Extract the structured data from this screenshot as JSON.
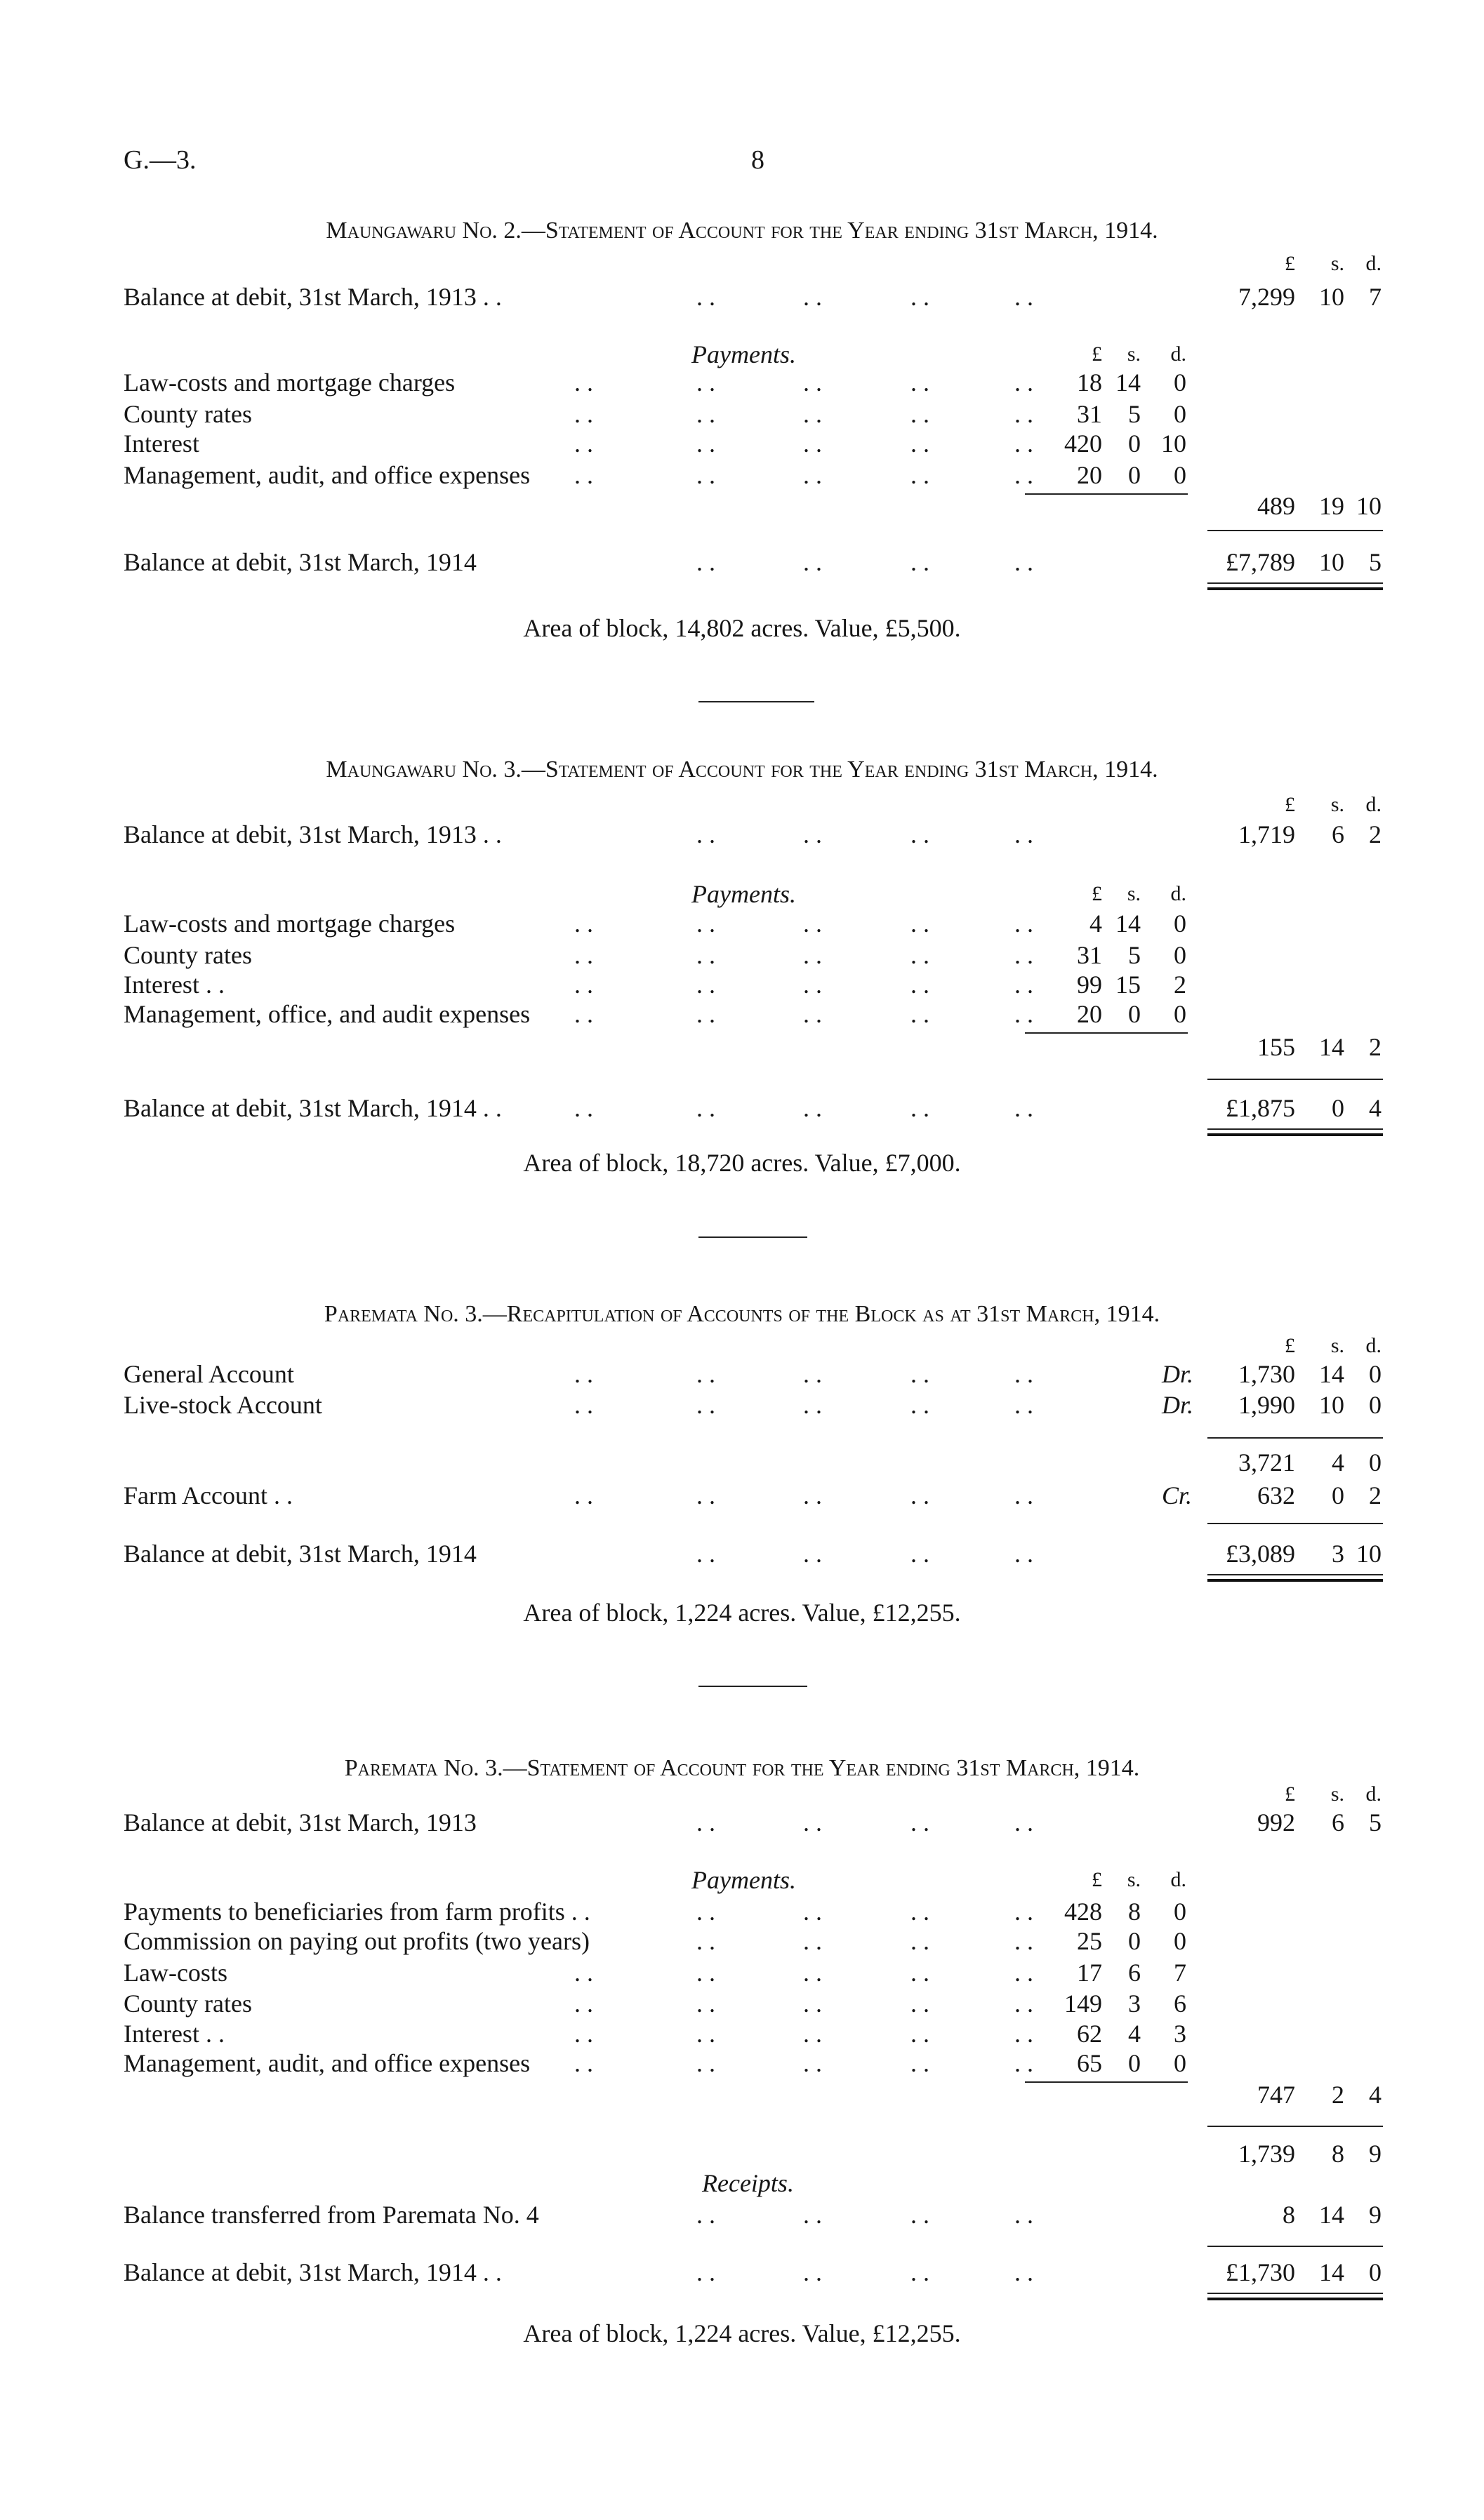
{
  "page": {
    "ref": "G.—3.",
    "number": "8",
    "leader": ". ."
  },
  "columns": {
    "pounds": "£",
    "shillings": "s.",
    "pence": "d."
  },
  "sections": [
    {
      "title": "Maungawaru No. 2.—Statement of Account for the Year ending 31st March, 1914.",
      "opening": {
        "label": "Balance at debit, 31st March, 1913 . .",
        "amount": [
          "7,299",
          "10",
          "7"
        ]
      },
      "payments_heading": "Payments.",
      "payments": [
        {
          "label": "Law-costs and mortgage charges",
          "amount": [
            "18",
            "14",
            "0"
          ]
        },
        {
          "label": "County rates",
          "amount": [
            "31",
            "5",
            "0"
          ]
        },
        {
          "label": "Interest",
          "amount": [
            "420",
            "0",
            "10"
          ]
        },
        {
          "label": "Management, audit, and office expenses",
          "amount": [
            "20",
            "0",
            "0"
          ]
        }
      ],
      "payments_total": [
        "489",
        "19",
        "10"
      ],
      "closing": {
        "label": "Balance at debit, 31st March, 1914",
        "amount": [
          "£7,789",
          "10",
          "5"
        ]
      },
      "footer": "Area of block, 14,802 acres.   Value, £5,500."
    },
    {
      "title": "Maungawaru No. 3.—Statement of Account for the Year ending 31st March, 1914.",
      "opening": {
        "label": "Balance at debit, 31st March, 1913 . .",
        "amount": [
          "1,719",
          "6",
          "2"
        ]
      },
      "payments_heading": "Payments.",
      "payments": [
        {
          "label": "Law-costs and mortgage charges",
          "amount": [
            "4",
            "14",
            "0"
          ]
        },
        {
          "label": "County rates",
          "amount": [
            "31",
            "5",
            "0"
          ]
        },
        {
          "label": "Interest . .",
          "amount": [
            "99",
            "15",
            "2"
          ]
        },
        {
          "label": "Management, office, and audit expenses",
          "amount": [
            "20",
            "0",
            "0"
          ]
        }
      ],
      "payments_total": [
        "155",
        "14",
        "2"
      ],
      "closing": {
        "label": "Balance at debit, 31st March, 1914 . .",
        "amount": [
          "£1,875",
          "0",
          "4"
        ]
      },
      "footer": "Area of block, 18,720 acres.   Value, £7,000."
    },
    {
      "title": "Paremata No. 3.—Recapitulation of Accounts of the Block as at 31st March, 1914.",
      "accounts": [
        {
          "label": "General Account",
          "side": "Dr.",
          "amount": [
            "1,730",
            "14",
            "0"
          ]
        },
        {
          "label": "Live-stock Account",
          "side": "Dr.",
          "amount": [
            "1,990",
            "10",
            "0"
          ]
        }
      ],
      "subtotal": [
        "3,721",
        "4",
        "0"
      ],
      "farm": {
        "label": "Farm Account . .",
        "side": "Cr.",
        "amount": [
          "632",
          "0",
          "2"
        ]
      },
      "closing": {
        "label": "Balance at debit, 31st March, 1914",
        "amount": [
          "£3,089",
          "3",
          "10"
        ]
      },
      "footer": "Area of block, 1,224 acres.   Value, £12,255."
    },
    {
      "title": "Paremata No. 3.—Statement of Account for the Year ending 31st March, 1914.",
      "opening": {
        "label": "Balance at debit, 31st March, 1913",
        "amount": [
          "992",
          "6",
          "5"
        ]
      },
      "payments_heading": "Payments.",
      "payments": [
        {
          "label": "Payments to beneficiaries from farm profits . .",
          "amount": [
            "428",
            "8",
            "0"
          ]
        },
        {
          "label": "Commission on paying out profits (two years)",
          "amount": [
            "25",
            "0",
            "0"
          ]
        },
        {
          "label": "Law-costs",
          "amount": [
            "17",
            "6",
            "7"
          ]
        },
        {
          "label": "County rates",
          "amount": [
            "149",
            "3",
            "6"
          ]
        },
        {
          "label": "Interest . .",
          "amount": [
            "62",
            "4",
            "3"
          ]
        },
        {
          "label": "Management, audit, and office expenses",
          "amount": [
            "65",
            "0",
            "0"
          ]
        }
      ],
      "payments_total": [
        "747",
        "2",
        "4"
      ],
      "gross": [
        "1,739",
        "8",
        "9"
      ],
      "receipts_heading": "Receipts.",
      "receipts": [
        {
          "label": "Balance transferred from Paremata No. 4",
          "amount": [
            "8",
            "14",
            "9"
          ]
        }
      ],
      "closing": {
        "label": "Balance at debit, 31st March, 1914 . .",
        "amount": [
          "£1,730",
          "14",
          "0"
        ]
      },
      "footer": "Area of block, 1,224 acres.   Value, £12,255."
    }
  ]
}
